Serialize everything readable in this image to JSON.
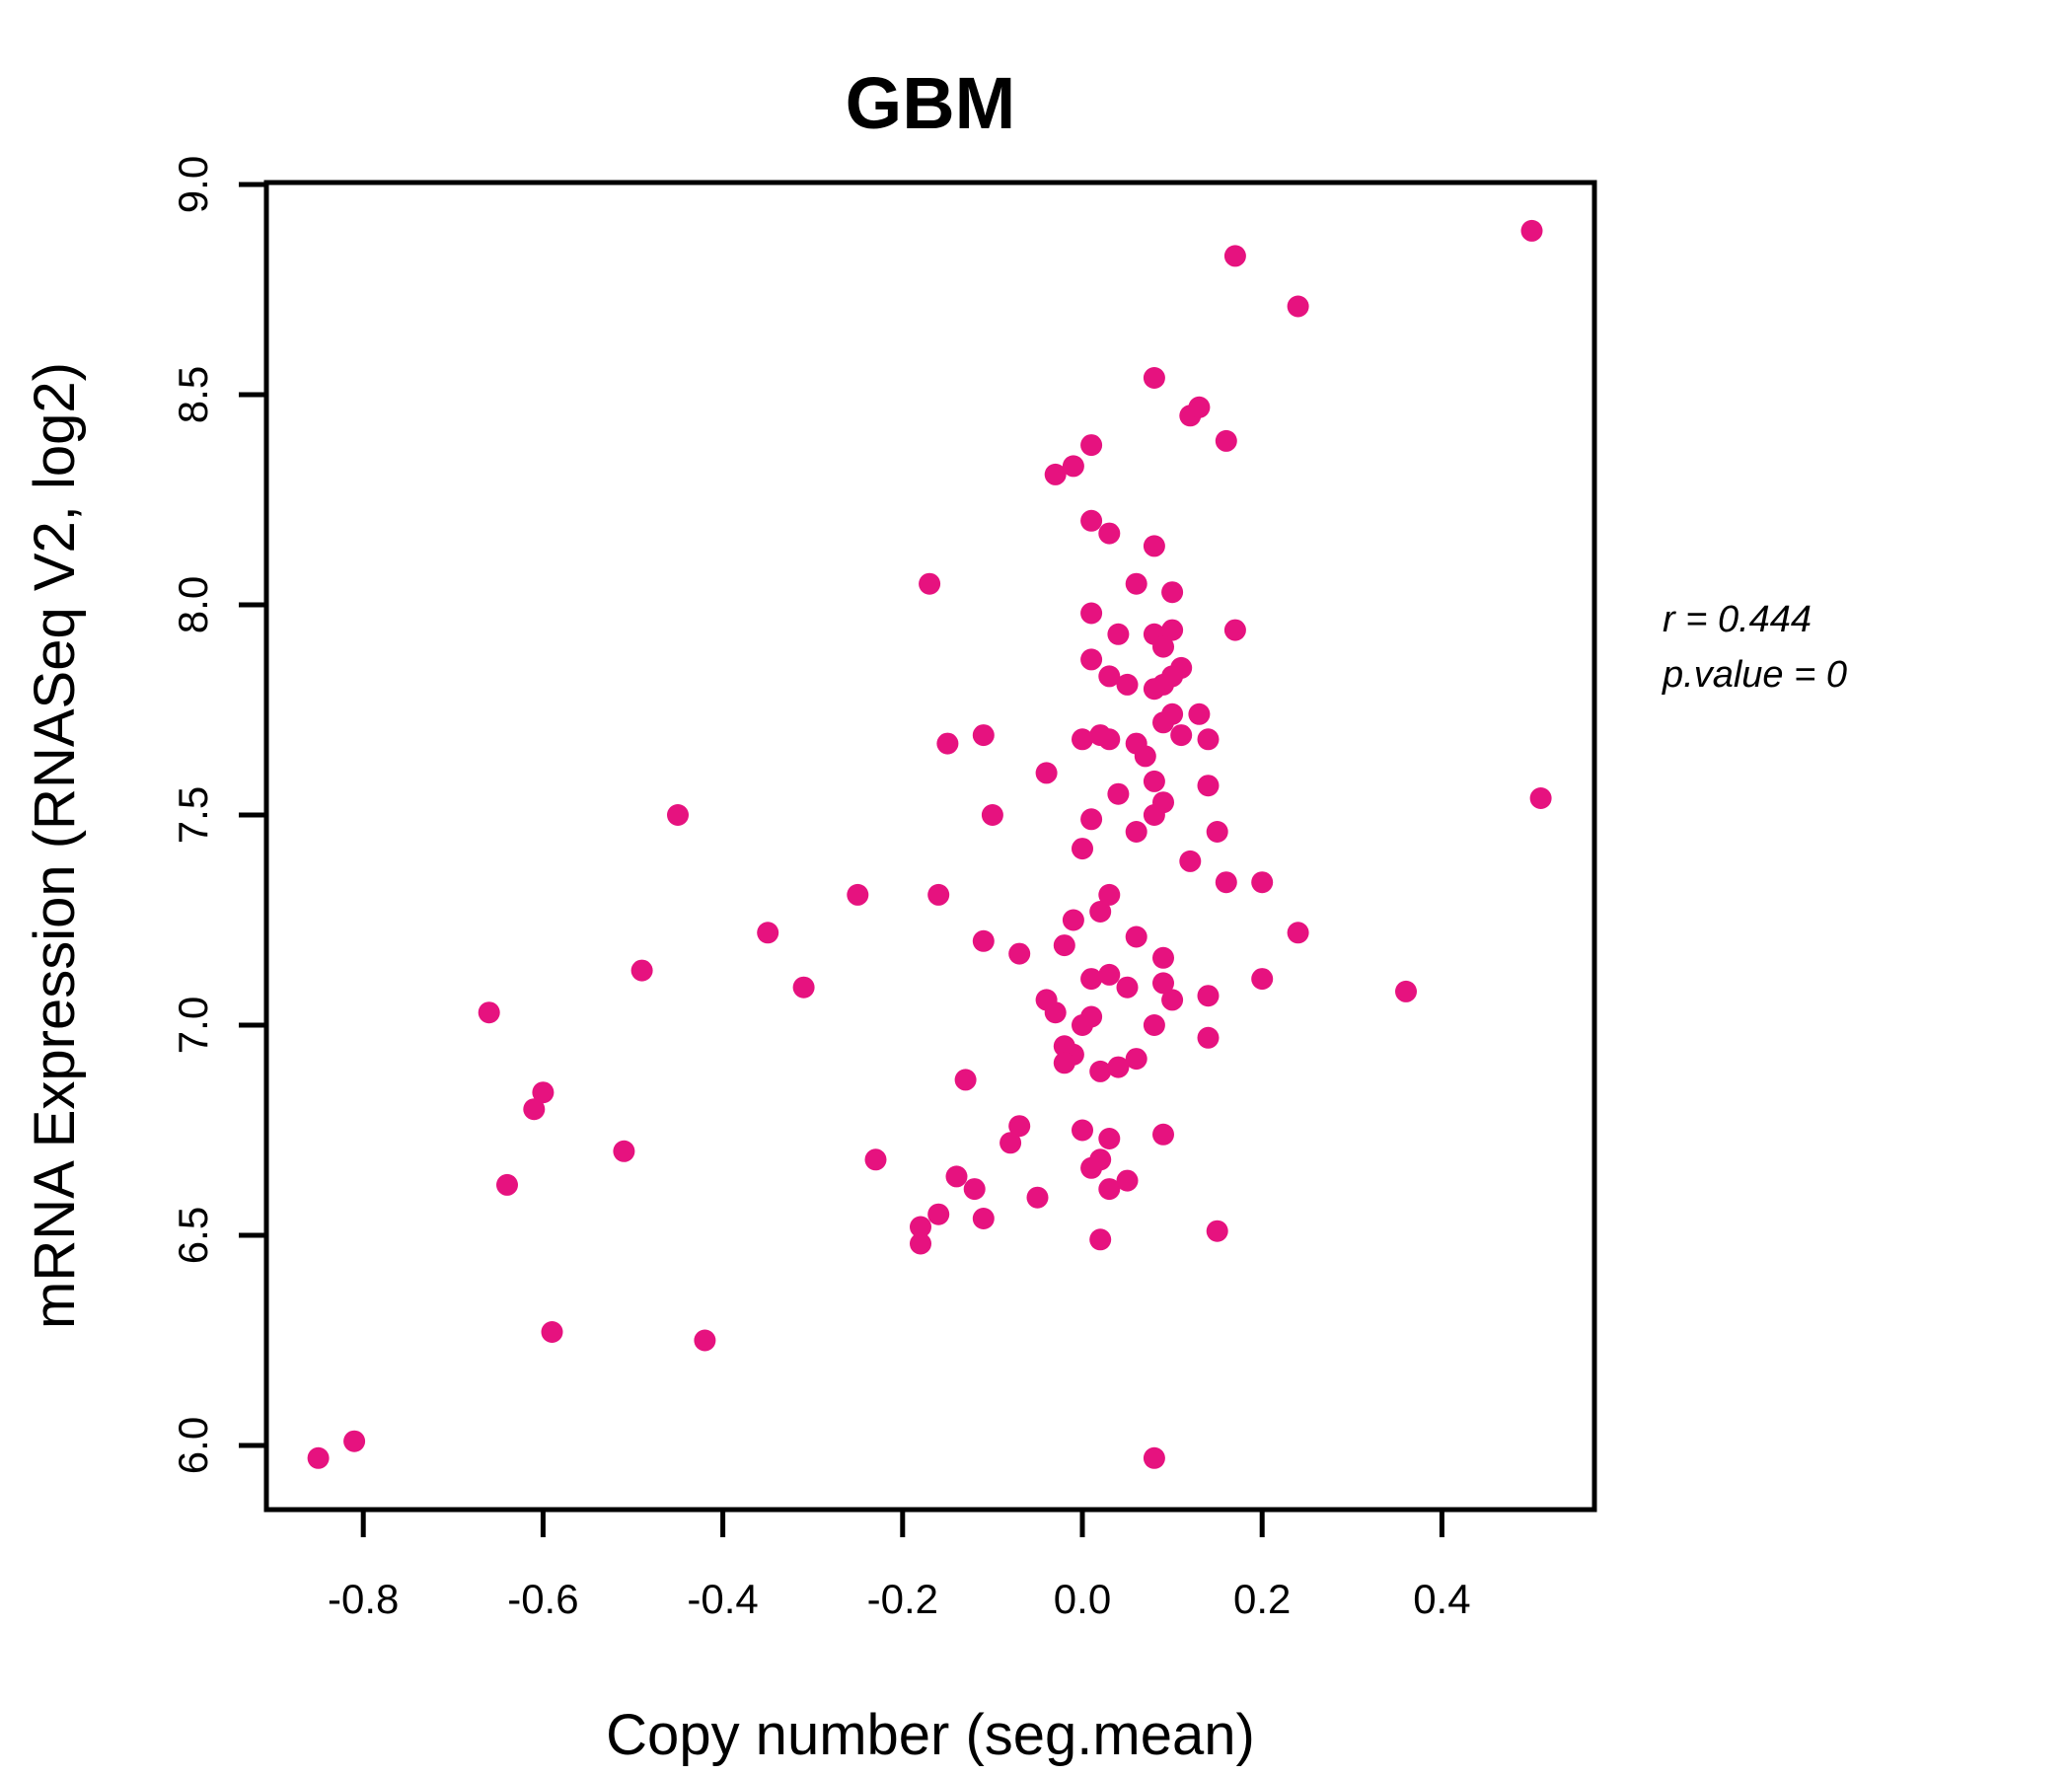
{
  "chart_data": {
    "type": "scatter",
    "title": "GBM",
    "xlabel": "Copy number (seg.mean)",
    "ylabel": "mRNA Expression (RNASeq V2, log2)",
    "x_ticks": [
      -0.8,
      -0.6,
      -0.4,
      -0.2,
      0.0,
      0.2,
      0.4
    ],
    "y_ticks": [
      6.0,
      6.5,
      7.0,
      7.5,
      8.0,
      8.5,
      9.0
    ],
    "xlim": [
      -0.91,
      0.57
    ],
    "ylim": [
      5.85,
      9.01
    ],
    "grid": false,
    "legend": "none",
    "point_color": "#E6127F",
    "title_color": "#E6127F",
    "axis_color": "#000000",
    "annotation": {
      "r_label": "r = 0.444",
      "p_label": "p.value = 0"
    },
    "points": [
      [
        0.5,
        8.89
      ],
      [
        0.17,
        8.83
      ],
      [
        0.24,
        8.71
      ],
      [
        0.08,
        8.54
      ],
      [
        0.12,
        8.45
      ],
      [
        0.13,
        8.47
      ],
      [
        0.16,
        8.39
      ],
      [
        0.01,
        8.38
      ],
      [
        -0.03,
        8.31
      ],
      [
        -0.01,
        8.33
      ],
      [
        0.01,
        8.2
      ],
      [
        0.03,
        8.17
      ],
      [
        0.08,
        8.14
      ],
      [
        -0.17,
        8.05
      ],
      [
        0.06,
        8.05
      ],
      [
        0.1,
        8.03
      ],
      [
        0.01,
        7.98
      ],
      [
        0.04,
        7.93
      ],
      [
        0.08,
        7.93
      ],
      [
        0.1,
        7.94
      ],
      [
        0.09,
        7.9
      ],
      [
        0.17,
        7.94
      ],
      [
        0.01,
        7.87
      ],
      [
        0.03,
        7.83
      ],
      [
        0.05,
        7.81
      ],
      [
        0.11,
        7.85
      ],
      [
        0.1,
        7.83
      ],
      [
        0.09,
        7.81
      ],
      [
        0.08,
        7.8
      ],
      [
        0.0,
        7.68
      ],
      [
        0.02,
        7.69
      ],
      [
        0.03,
        7.68
      ],
      [
        -0.15,
        7.67
      ],
      [
        -0.11,
        7.69
      ],
      [
        0.1,
        7.74
      ],
      [
        0.13,
        7.74
      ],
      [
        0.09,
        7.72
      ],
      [
        0.11,
        7.69
      ],
      [
        0.14,
        7.68
      ],
      [
        0.06,
        7.67
      ],
      [
        0.07,
        7.64
      ],
      [
        -0.04,
        7.6
      ],
      [
        0.04,
        7.55
      ],
      [
        0.14,
        7.57
      ],
      [
        0.08,
        7.58
      ],
      [
        0.09,
        7.53
      ],
      [
        0.08,
        7.5
      ],
      [
        -0.1,
        7.5
      ],
      [
        0.01,
        7.49
      ],
      [
        -0.45,
        7.5
      ],
      [
        0.51,
        7.54
      ],
      [
        0.0,
        7.42
      ],
      [
        0.15,
        7.46
      ],
      [
        0.06,
        7.46
      ],
      [
        0.12,
        7.39
      ],
      [
        0.16,
        7.34
      ],
      [
        0.2,
        7.34
      ],
      [
        -0.25,
        7.31
      ],
      [
        -0.16,
        7.31
      ],
      [
        -0.35,
        7.22
      ],
      [
        0.24,
        7.22
      ],
      [
        0.02,
        7.27
      ],
      [
        0.03,
        7.31
      ],
      [
        0.06,
        7.21
      ],
      [
        0.09,
        7.16
      ],
      [
        -0.01,
        7.25
      ],
      [
        -0.31,
        7.09
      ],
      [
        -0.11,
        7.2
      ],
      [
        -0.07,
        7.17
      ],
      [
        -0.02,
        7.19
      ],
      [
        0.01,
        7.11
      ],
      [
        0.03,
        7.12
      ],
      [
        0.05,
        7.09
      ],
      [
        0.09,
        7.1
      ],
      [
        0.1,
        7.06
      ],
      [
        0.14,
        7.07
      ],
      [
        0.2,
        7.11
      ],
      [
        0.36,
        7.08
      ],
      [
        -0.04,
        7.06
      ],
      [
        -0.03,
        7.03
      ],
      [
        0.0,
        7.0
      ],
      [
        0.01,
        7.02
      ],
      [
        -0.66,
        7.03
      ],
      [
        -0.49,
        7.13
      ],
      [
        -0.02,
        6.95
      ],
      [
        -0.01,
        6.93
      ],
      [
        -0.02,
        6.91
      ],
      [
        0.02,
        6.89
      ],
      [
        0.04,
        6.9
      ],
      [
        0.06,
        6.92
      ],
      [
        0.08,
        7.0
      ],
      [
        0.14,
        6.97
      ],
      [
        -0.13,
        6.87
      ],
      [
        -0.6,
        6.84
      ],
      [
        -0.61,
        6.8
      ],
      [
        -0.07,
        6.76
      ],
      [
        -0.08,
        6.72
      ],
      [
        0.0,
        6.75
      ],
      [
        0.03,
        6.73
      ],
      [
        0.02,
        6.68
      ],
      [
        0.01,
        6.66
      ],
      [
        -0.23,
        6.68
      ],
      [
        -0.14,
        6.64
      ],
      [
        -0.12,
        6.61
      ],
      [
        0.03,
        6.61
      ],
      [
        0.05,
        6.63
      ],
      [
        0.09,
        6.74
      ],
      [
        -0.51,
        6.7
      ],
      [
        -0.64,
        6.62
      ],
      [
        -0.05,
        6.59
      ],
      [
        -0.16,
        6.55
      ],
      [
        -0.11,
        6.54
      ],
      [
        -0.18,
        6.52
      ],
      [
        -0.18,
        6.48
      ],
      [
        0.02,
        6.49
      ],
      [
        0.15,
        6.51
      ],
      [
        -0.59,
        6.27
      ],
      [
        -0.42,
        6.25
      ],
      [
        -0.85,
        5.97
      ],
      [
        -0.81,
        6.01
      ],
      [
        0.08,
        5.97
      ]
    ]
  }
}
